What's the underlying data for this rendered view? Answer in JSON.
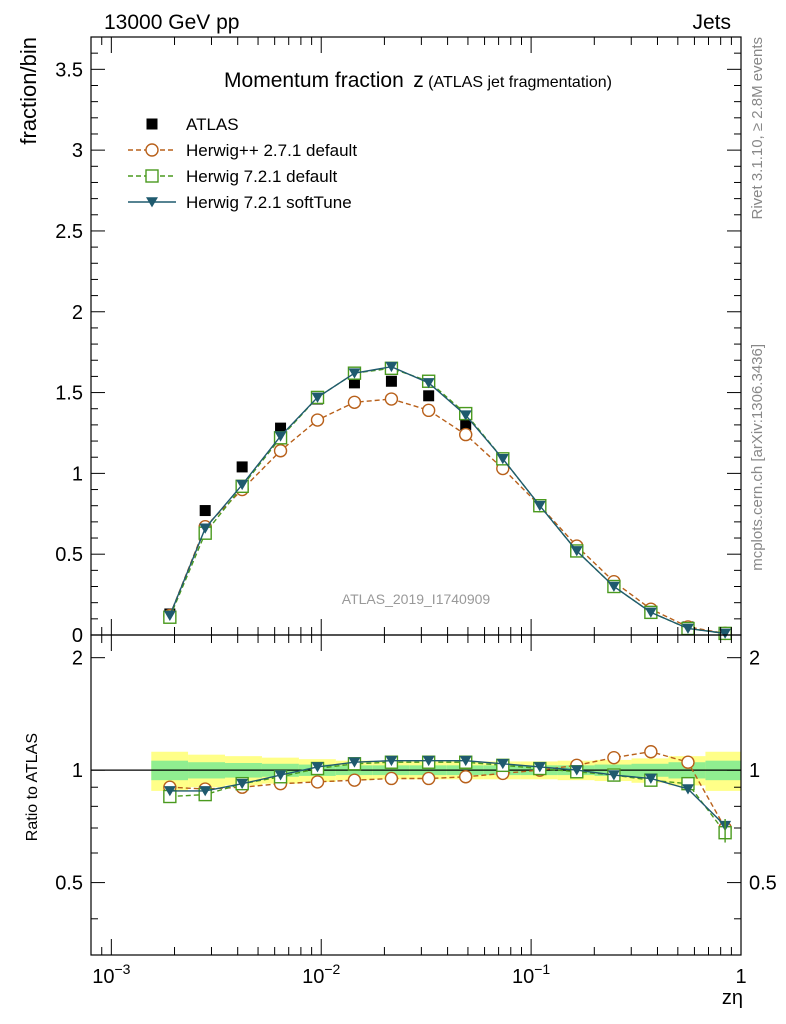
{
  "header": {
    "left": "13000 GeV pp",
    "right": "Jets"
  },
  "side_text": {
    "rivet": "Rivet 3.1.10, ≥ 2.8M events",
    "mcplots": "mcplots.cern.ch [arXiv:1306.3436]"
  },
  "colors": {
    "atlas": "#000000",
    "herwigpp": "#b8601a",
    "herwig721": "#4a9a1e",
    "softtune": "#1f5a6e",
    "band_inner": "#90ee90",
    "band_outer": "#ffff88",
    "watermark": "#999999"
  },
  "chart_data": [
    {
      "type": "scatter",
      "title_main": "Momentum fraction",
      "title_var": "z",
      "title_sub": "(ATLAS jet fragmentation)",
      "ylabel": "fraction/bin",
      "watermark": "ATLAS_2019_I1740909",
      "xscale": "log",
      "xlim": [
        0.0008,
        1
      ],
      "ylim": [
        0,
        3.7
      ],
      "yticks": [
        {
          "v": 0,
          "label": "0"
        },
        {
          "v": 0.5,
          "label": "0.5"
        },
        {
          "v": 1,
          "label": "1"
        },
        {
          "v": 1.5,
          "label": "1.5"
        },
        {
          "v": 2,
          "label": "2"
        },
        {
          "v": 2.5,
          "label": "2.5"
        },
        {
          "v": 3,
          "label": "3"
        },
        {
          "v": 3.5,
          "label": "3.5"
        }
      ],
      "legend_position": "top-left",
      "x": [
        0.0019,
        0.0028,
        0.0042,
        0.0064,
        0.0096,
        0.0144,
        0.0216,
        0.0325,
        0.0488,
        0.0733,
        0.11,
        0.165,
        0.248,
        0.372,
        0.559,
        0.84
      ],
      "series": [
        {
          "name": "ATLAS",
          "key": "atlas",
          "marker": "square-filled",
          "line": "none",
          "values": [
            0.13,
            0.77,
            1.04,
            1.28,
            1.46,
            1.56,
            1.57,
            1.48,
            1.3,
            1.06,
            0.8,
            0.54,
            0.31,
            0.15,
            0.05,
            0.01
          ]
        },
        {
          "name": "Herwig++ 2.7.1 default",
          "key": "herwigpp",
          "marker": "circle-open",
          "line": "dashed",
          "values": [
            0.12,
            0.67,
            0.9,
            1.14,
            1.33,
            1.44,
            1.46,
            1.39,
            1.24,
            1.03,
            0.8,
            0.55,
            0.33,
            0.16,
            0.05,
            0.01
          ]
        },
        {
          "name": "Herwig 7.2.1 default",
          "key": "herwig721",
          "marker": "square-open",
          "line": "dashed",
          "values": [
            0.11,
            0.63,
            0.92,
            1.22,
            1.47,
            1.62,
            1.65,
            1.57,
            1.37,
            1.09,
            0.8,
            0.52,
            0.3,
            0.14,
            0.04,
            0.01
          ]
        },
        {
          "name": "Herwig 7.2.1 softTune",
          "key": "softtune",
          "marker": "triangle-down-filled",
          "line": "solid",
          "values": [
            0.12,
            0.66,
            0.93,
            1.23,
            1.47,
            1.62,
            1.66,
            1.56,
            1.36,
            1.09,
            0.8,
            0.52,
            0.3,
            0.14,
            0.04,
            0.01
          ]
        }
      ]
    },
    {
      "type": "scatter",
      "ylabel": "Ratio to ATLAS",
      "xlabel": "zη",
      "xscale": "log",
      "xlim": [
        0.0008,
        1
      ],
      "ylim": [
        0.32,
        2.3
      ],
      "yscale": "log",
      "yticks": [
        {
          "v": 0.5,
          "label": "0.5"
        },
        {
          "v": 1,
          "label": "1"
        },
        {
          "v": 2,
          "label": "2"
        }
      ],
      "xticks": [
        {
          "v": 0.001,
          "base": "10",
          "exp": "−3"
        },
        {
          "v": 0.01,
          "base": "10",
          "exp": "−2"
        },
        {
          "v": 0.1,
          "base": "10",
          "exp": "−1"
        },
        {
          "v": 1,
          "base": "1",
          "exp": ""
        }
      ],
      "bin_edges": [
        0.00155,
        0.00232,
        0.00348,
        0.00522,
        0.00783,
        0.01174,
        0.01761,
        0.02642,
        0.03962,
        0.05944,
        0.08915,
        0.1337,
        0.2006,
        0.3009,
        0.4513,
        0.677,
        1.0
      ],
      "band_inner_halfwidth": [
        0.06,
        0.05,
        0.045,
        0.04,
        0.035,
        0.03,
        0.03,
        0.03,
        0.03,
        0.03,
        0.03,
        0.03,
        0.035,
        0.04,
        0.05,
        0.06
      ],
      "band_outer_halfwidth": [
        0.12,
        0.1,
        0.09,
        0.08,
        0.07,
        0.06,
        0.055,
        0.055,
        0.055,
        0.055,
        0.055,
        0.06,
        0.065,
        0.075,
        0.09,
        0.12
      ],
      "x": [
        0.0019,
        0.0028,
        0.0042,
        0.0064,
        0.0096,
        0.0144,
        0.0216,
        0.0325,
        0.0488,
        0.0733,
        0.11,
        0.165,
        0.248,
        0.372,
        0.559,
        0.84
      ],
      "series": [
        {
          "key": "herwigpp",
          "marker": "circle-open",
          "line": "dashed",
          "values": [
            0.9,
            0.89,
            0.9,
            0.92,
            0.93,
            0.94,
            0.95,
            0.95,
            0.96,
            0.98,
            1.0,
            1.03,
            1.08,
            1.12,
            1.05,
            0.7
          ]
        },
        {
          "key": "herwig721",
          "marker": "square-open",
          "line": "dashed",
          "values": [
            0.85,
            0.86,
            0.92,
            0.96,
            1.01,
            1.04,
            1.05,
            1.05,
            1.05,
            1.03,
            1.01,
            0.99,
            0.97,
            0.94,
            0.92,
            0.68
          ]
        },
        {
          "key": "softtune",
          "marker": "triangle-down-filled",
          "line": "solid",
          "values": [
            0.88,
            0.88,
            0.92,
            0.97,
            1.02,
            1.05,
            1.06,
            1.06,
            1.06,
            1.04,
            1.02,
            1.0,
            0.97,
            0.95,
            0.89,
            0.71
          ]
        }
      ]
    }
  ]
}
